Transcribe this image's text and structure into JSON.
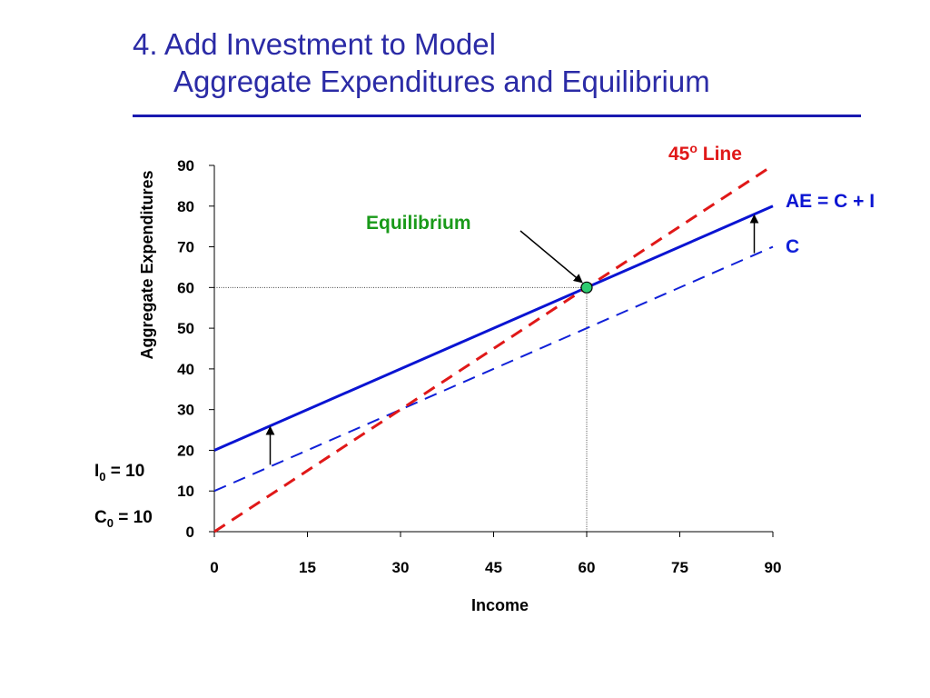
{
  "slide": {
    "title_line1": "4. Add Investment to Model",
    "title_line2": "Aggregate Expenditures and Equilibrium"
  },
  "colors": {
    "title": "#2b2ba6",
    "rule": "#1a1ab0",
    "ae_line": "#0a14d2",
    "c_line": "#1020d8",
    "line45": "#e01818",
    "equilibrium_text": "#1a9a1a",
    "equilibrium_marker": "#2ecc71"
  },
  "chart_data": {
    "type": "line",
    "xlabel": "Income",
    "ylabel": "Aggregate Expenditures",
    "xlim": [
      0,
      90
    ],
    "ylim": [
      0,
      90
    ],
    "x_ticks": [
      0,
      15,
      30,
      45,
      60,
      75,
      90
    ],
    "y_ticks": [
      0,
      10,
      20,
      30,
      40,
      50,
      60,
      70,
      80,
      90
    ],
    "grid": false,
    "series": [
      {
        "name": "AE = C + I",
        "style": "solid",
        "x": [
          0,
          90
        ],
        "y": [
          20,
          80
        ]
      },
      {
        "name": "C",
        "style": "dashed",
        "x": [
          0,
          90
        ],
        "y": [
          10,
          70
        ]
      },
      {
        "name": "45",
        "name_suffix": " Line",
        "name_superscript": "o",
        "style": "dashed",
        "x": [
          0,
          90
        ],
        "y": [
          0,
          90
        ]
      }
    ],
    "equilibrium": {
      "label": "Equilibrium",
      "x": 60,
      "y": 60
    },
    "annotations": {
      "investment_label": {
        "main": "I",
        "sub": "0",
        "rest": " = 10"
      },
      "consumption_label": {
        "main": "C",
        "sub": "0",
        "rest": " = 10"
      },
      "shift_arrows_x": [
        9,
        87
      ]
    }
  }
}
